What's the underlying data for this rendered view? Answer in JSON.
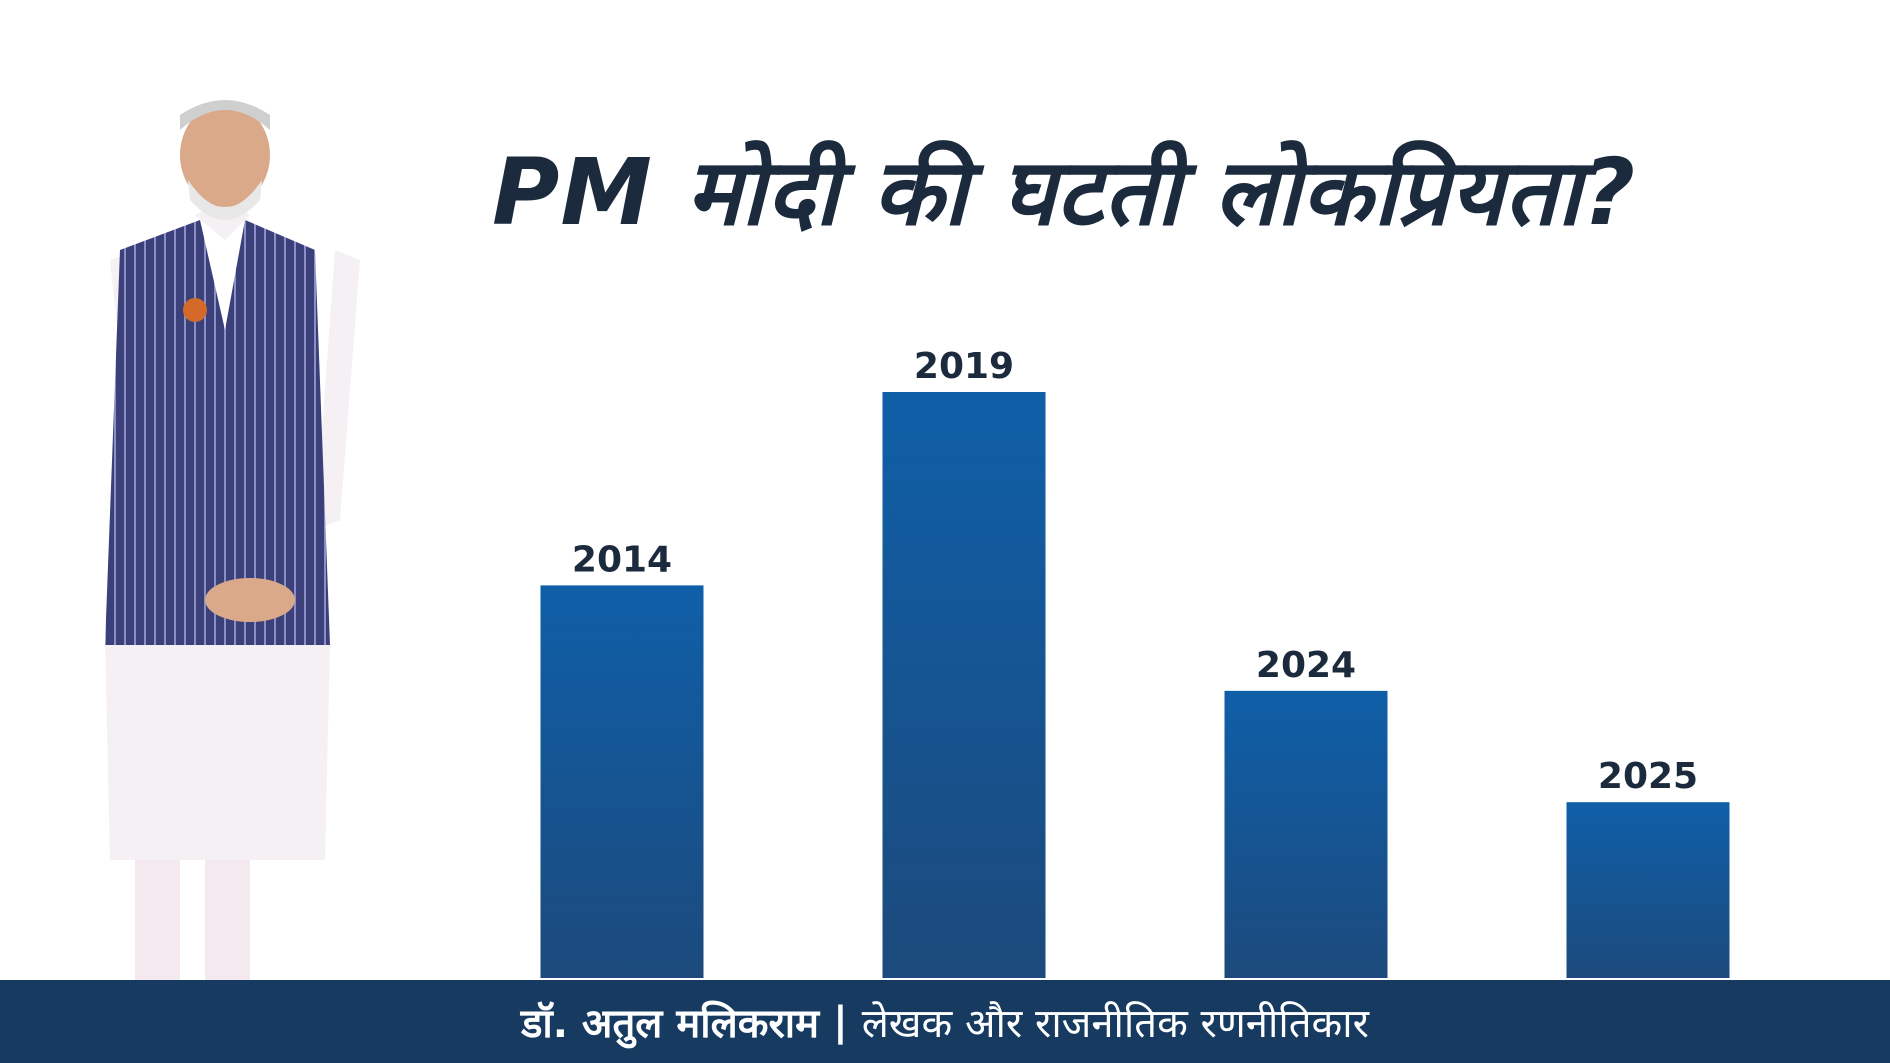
{
  "title": "PM मोदी की घटती लोकप्रियता?",
  "footer": {
    "author": "डॉ. अतुल मलिकराम",
    "separator": "|",
    "role": "लेखक और राजनीतिक रणनीतिकार"
  },
  "colors": {
    "bar_top": "#0f5fa8",
    "bar_bottom": "#1c4a7c",
    "footer_bg": "#173a60",
    "title": "#1b2a3c"
  },
  "chart_data": {
    "type": "bar",
    "categories": [
      "2014",
      "2019",
      "2024",
      "2025"
    ],
    "values": [
      67,
      100,
      49,
      30
    ],
    "ylim": [
      0,
      100
    ],
    "grid": false,
    "title": "PM मोदी की घटती लोकप्रियता?"
  }
}
